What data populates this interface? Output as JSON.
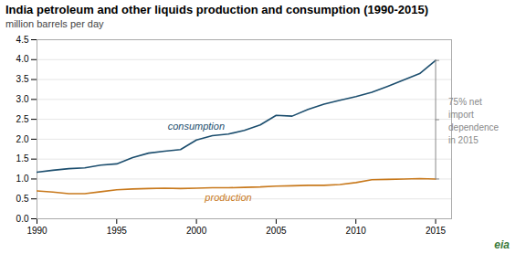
{
  "chart_data": {
    "type": "line",
    "title": "India petroleum and other liquids production and consumption (1990-2015)",
    "subtitle": "million barrels per day",
    "x": [
      1990,
      1991,
      1992,
      1993,
      1994,
      1995,
      1996,
      1997,
      1998,
      1999,
      2000,
      2001,
      2002,
      2003,
      2004,
      2005,
      2006,
      2007,
      2008,
      2009,
      2010,
      2011,
      2012,
      2013,
      2014,
      2015
    ],
    "series": [
      {
        "name": "consumption",
        "color": "#1c4e6e",
        "values": [
          1.17,
          1.22,
          1.26,
          1.28,
          1.35,
          1.38,
          1.54,
          1.65,
          1.7,
          1.74,
          1.98,
          2.09,
          2.13,
          2.22,
          2.36,
          2.6,
          2.58,
          2.75,
          2.88,
          2.98,
          3.07,
          3.18,
          3.33,
          3.49,
          3.65,
          3.98
        ]
      },
      {
        "name": "production",
        "color": "#c8791c",
        "values": [
          0.7,
          0.67,
          0.63,
          0.63,
          0.68,
          0.73,
          0.75,
          0.76,
          0.77,
          0.76,
          0.77,
          0.78,
          0.78,
          0.79,
          0.8,
          0.82,
          0.83,
          0.84,
          0.84,
          0.86,
          0.91,
          0.98,
          0.99,
          1.0,
          1.01,
          1.0
        ]
      }
    ],
    "xlim": [
      1990,
      2016
    ],
    "xticks": [
      1990,
      1995,
      2000,
      2005,
      2010,
      2015
    ],
    "ylim": [
      0.0,
      4.5
    ],
    "yticks": [
      {
        "value": 0.0,
        "label": "0.0"
      },
      0.5,
      {
        "value": 1.0,
        "label": "1.0"
      },
      1.5,
      {
        "value": 2.0,
        "label": "2.0"
      },
      2.5,
      {
        "value": 3.0,
        "label": "3.0"
      },
      3.5,
      {
        "value": 4.0,
        "label": "4.0"
      },
      4.5
    ],
    "grid": true,
    "annotations": [
      {
        "text": "75% net\nimport\ndependence\nin 2015",
        "color": "#888888"
      }
    ],
    "caption": "eia"
  }
}
